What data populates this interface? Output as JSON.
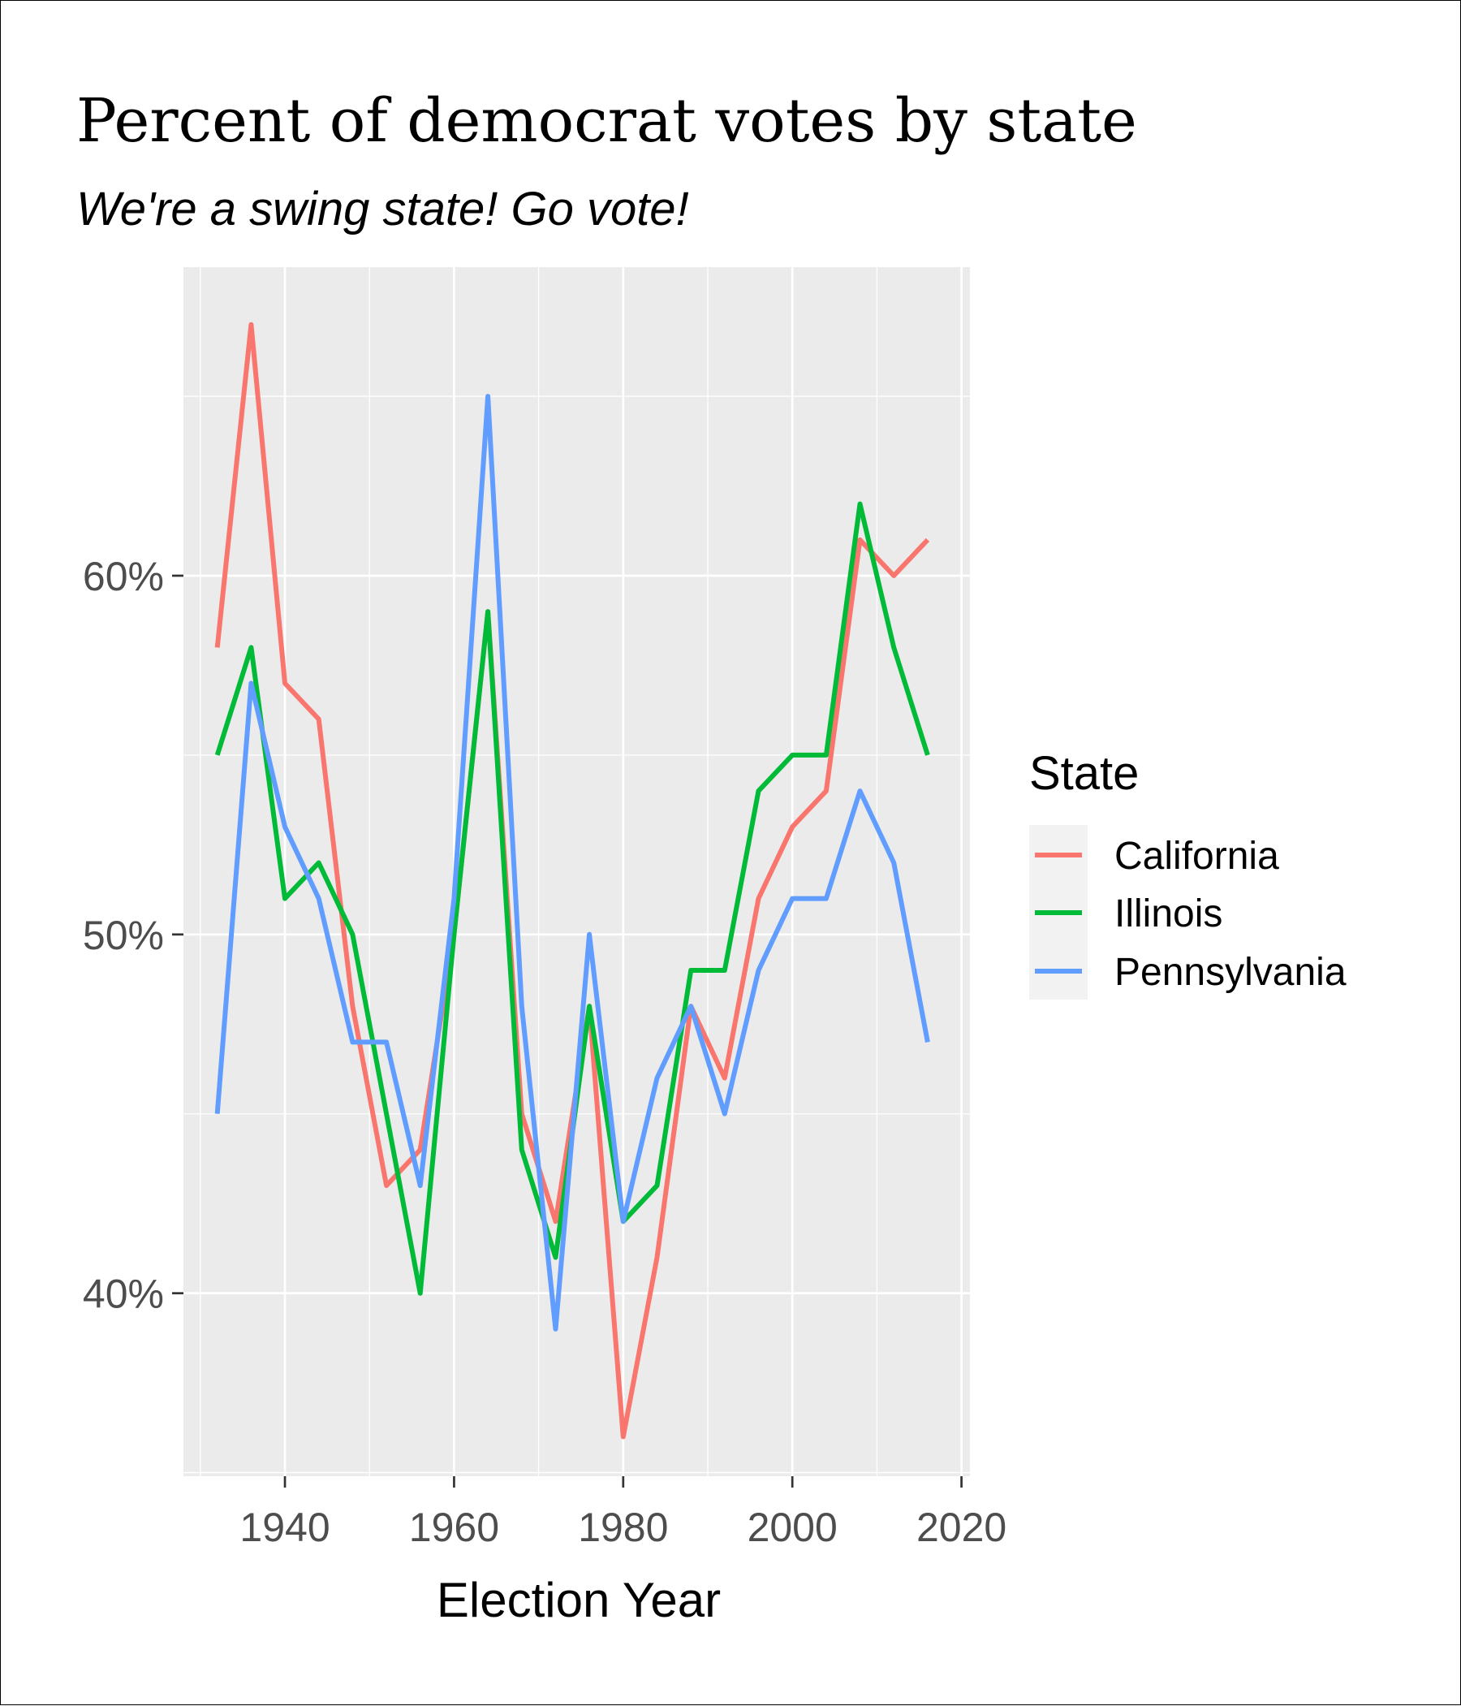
{
  "chart_data": {
    "type": "line",
    "title": "Percent of democrat votes by state",
    "subtitle": "We're a swing state! Go vote!",
    "xlabel": "Election Year",
    "ylabel": "",
    "xlim": [
      1928,
      2021
    ],
    "ylim": [
      34.9,
      68.6
    ],
    "x_ticks": [
      1940,
      1960,
      1980,
      2000,
      2020
    ],
    "x_tick_labels": [
      "1940",
      "1960",
      "1980",
      "2000",
      "2020"
    ],
    "y_ticks": [
      40,
      50,
      60
    ],
    "y_tick_labels": [
      "40%",
      "50%",
      "60%"
    ],
    "grid": true,
    "legend_title": "State",
    "legend_position": "right",
    "x": [
      1932,
      1936,
      1940,
      1944,
      1948,
      1952,
      1956,
      1960,
      1964,
      1968,
      1972,
      1976,
      1980,
      1984,
      1988,
      1992,
      1996,
      2000,
      2004,
      2008,
      2012,
      2016
    ],
    "series": [
      {
        "name": "California",
        "color": "#F8766D",
        "values": [
          58,
          67,
          57,
          56,
          48,
          43,
          44,
          50,
          59,
          45,
          42,
          48,
          36,
          41,
          48,
          46,
          51,
          53,
          54,
          61,
          60,
          61
        ]
      },
      {
        "name": "Illinois",
        "color": "#00BA38",
        "values": [
          55,
          58,
          51,
          52,
          50,
          45,
          40,
          50,
          59,
          44,
          41,
          48,
          42,
          43,
          49,
          49,
          54,
          55,
          55,
          62,
          58,
          55
        ]
      },
      {
        "name": "Pennsylvania",
        "color": "#619CFF",
        "values": [
          45,
          57,
          53,
          51,
          47,
          47,
          43,
          51,
          65,
          48,
          39,
          50,
          42,
          46,
          48,
          45,
          49,
          51,
          51,
          54,
          52,
          47
        ]
      }
    ]
  }
}
